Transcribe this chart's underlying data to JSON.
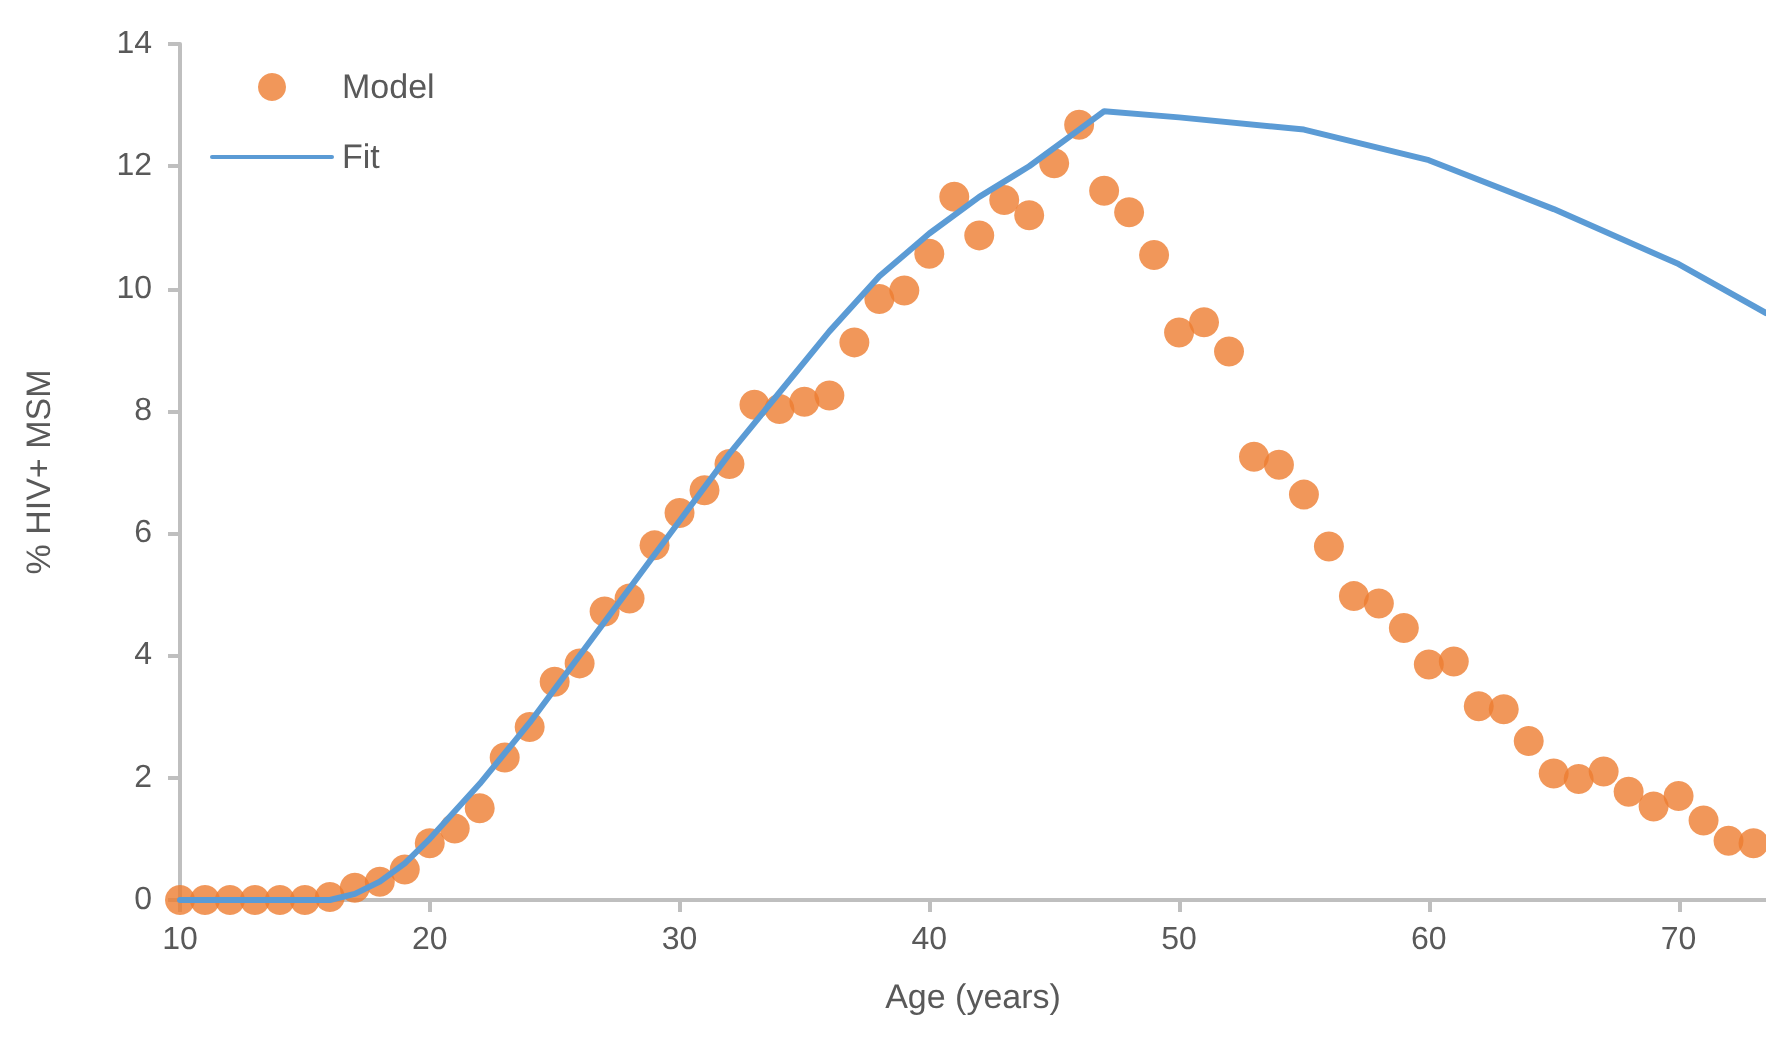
{
  "chart_data": {
    "type": "scatter",
    "xlabel": "Age (years)",
    "ylabel": "% HIV+ MSM",
    "xlim": [
      10,
      73.5
    ],
    "xticks": [
      10,
      20,
      30,
      40,
      50,
      60,
      70
    ],
    "ylim": [
      0,
      14
    ],
    "yticks": [
      0,
      2,
      4,
      6,
      8,
      10,
      12,
      14
    ],
    "grid": false,
    "legend": "top left",
    "marker": "circle",
    "x": [
      10,
      11,
      12,
      13,
      14,
      15,
      16,
      17,
      18,
      19,
      20,
      21,
      22,
      23,
      24,
      25,
      26,
      27,
      28,
      29,
      30,
      31,
      32,
      33,
      34,
      35,
      36,
      37,
      38,
      39,
      40,
      41,
      42,
      43,
      44,
      45,
      46,
      47,
      48,
      49,
      50,
      51,
      52,
      53,
      54,
      55,
      56,
      57,
      58,
      59,
      60,
      61,
      62,
      63,
      64,
      65,
      66,
      67,
      68,
      69,
      70,
      71,
      72,
      73
    ],
    "series": [
      {
        "name": "Model",
        "type": "scatter",
        "color": "#ed7d31",
        "values": [
          0,
          0,
          0,
          0,
          0,
          0,
          0.05,
          0.2,
          0.3,
          0.5,
          0.93,
          1.17,
          1.5,
          2.33,
          2.83,
          3.57,
          3.87,
          4.72,
          4.93,
          5.8,
          6.33,
          6.7,
          7.13,
          8.1,
          8.03,
          8.15,
          8.25,
          9.12,
          9.83,
          9.97,
          10.57,
          11.5,
          10.87,
          11.45,
          11.2,
          12.05,
          12.68,
          11.6,
          11.25,
          10.55,
          9.28,
          9.45,
          8.97,
          7.25,
          7.12,
          6.63,
          5.78,
          4.97,
          4.85,
          4.45,
          3.85,
          3.9,
          3.17,
          3.12,
          2.6,
          2.07,
          1.98,
          2.1,
          1.77,
          1.53,
          1.7,
          1.3,
          0.97,
          0.93
        ]
      },
      {
        "name": "Fit",
        "type": "line",
        "color": "#5b9bd5",
        "marker": "none",
        "line_style": "solid",
        "x": [
          10,
          16,
          17,
          18,
          19,
          20,
          22,
          24,
          26,
          28,
          30,
          32,
          34,
          36,
          38,
          40,
          42,
          44,
          46,
          47,
          50,
          55,
          60,
          65,
          70,
          73.5
        ],
        "values": [
          0,
          0,
          0.1,
          0.3,
          0.6,
          1.0,
          1.9,
          2.9,
          4.0,
          5.1,
          6.2,
          7.3,
          8.3,
          9.3,
          10.2,
          10.9,
          11.5,
          12.0,
          12.6,
          12.9,
          12.8,
          12.6,
          12.1,
          11.3,
          10.4,
          9.6
        ]
      }
    ]
  }
}
